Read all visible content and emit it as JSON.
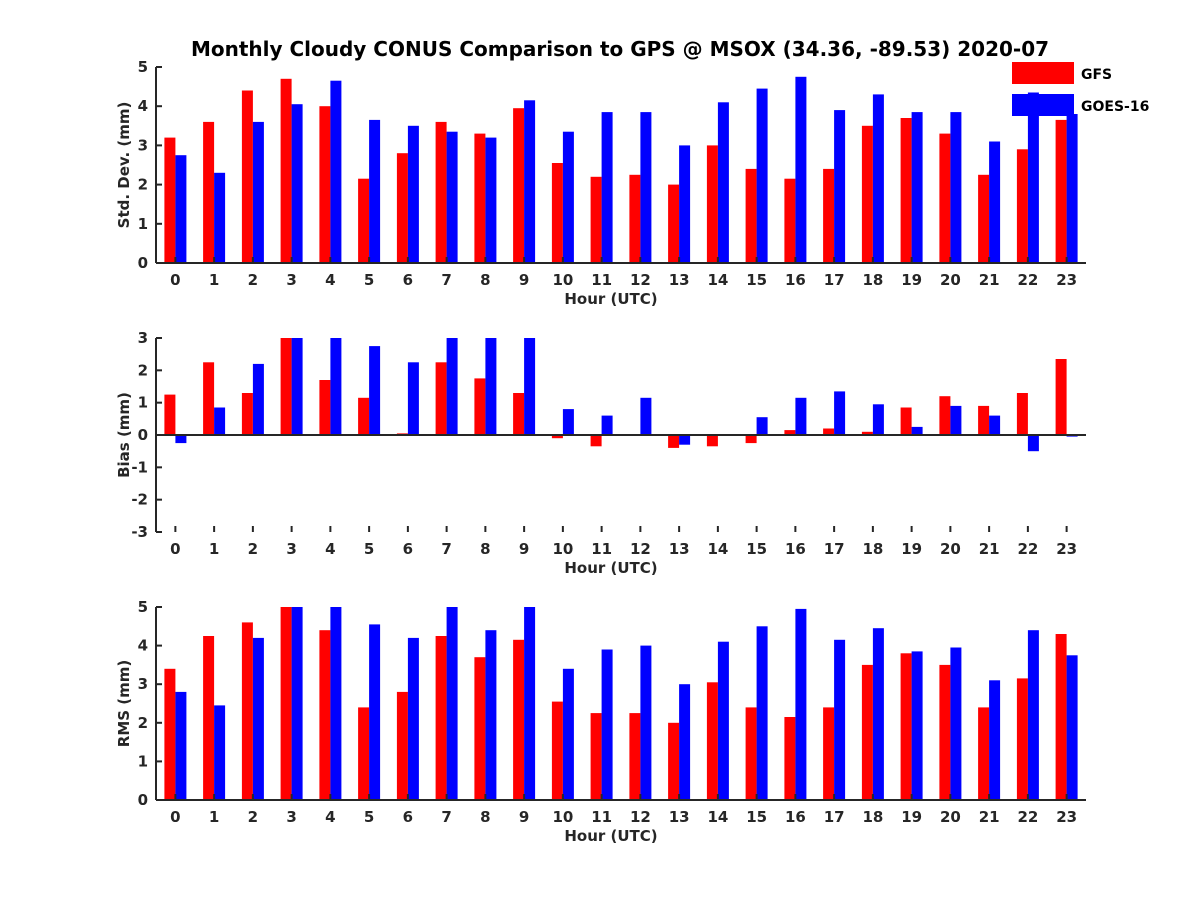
{
  "figure": {
    "title": "Monthly Cloudy CONUS Comparison to GPS @ MSOX (34.36, -89.53) 2020-07"
  },
  "colors": {
    "GFS": "#ff0000",
    "GOES-16": "#0000ff",
    "axis": "#262626"
  },
  "legend": {
    "placement": "top-right",
    "entries": [
      {
        "label": "GFS",
        "color": "#ff0000"
      },
      {
        "label": "GOES-16",
        "color": "#0000ff"
      }
    ]
  },
  "chart_data": [
    {
      "type": "bar",
      "xlabel": "Hour (UTC)",
      "ylabel": "Std. Dev. (mm)",
      "ylim": [
        0,
        5
      ],
      "yticks": [
        0,
        1,
        2,
        3,
        4,
        5
      ],
      "categories": [
        "0",
        "1",
        "2",
        "3",
        "4",
        "5",
        "6",
        "7",
        "8",
        "9",
        "10",
        "11",
        "12",
        "13",
        "14",
        "15",
        "16",
        "17",
        "18",
        "19",
        "20",
        "21",
        "22",
        "23"
      ],
      "series": [
        {
          "name": "GFS",
          "values": [
            3.2,
            3.6,
            4.4,
            4.7,
            4.0,
            2.15,
            2.8,
            3.6,
            3.3,
            3.95,
            2.55,
            2.2,
            2.25,
            2.0,
            3.0,
            2.4,
            2.15,
            2.4,
            3.5,
            3.7,
            3.3,
            2.25,
            2.9,
            3.65
          ]
        },
        {
          "name": "GOES-16",
          "values": [
            2.75,
            2.3,
            3.6,
            4.05,
            4.65,
            3.65,
            3.5,
            3.35,
            3.2,
            4.15,
            3.35,
            3.85,
            3.85,
            3.0,
            4.1,
            4.45,
            4.75,
            3.9,
            4.3,
            3.85,
            3.85,
            3.1,
            4.35,
            3.8
          ]
        }
      ],
      "grid": false
    },
    {
      "type": "bar",
      "xlabel": "Hour (UTC)",
      "ylabel": "Bias (mm)",
      "ylim": [
        -3,
        3
      ],
      "yticks": [
        -3,
        -2,
        -1,
        0,
        1,
        2,
        3
      ],
      "categories": [
        "0",
        "1",
        "2",
        "3",
        "4",
        "5",
        "6",
        "7",
        "8",
        "9",
        "10",
        "11",
        "12",
        "13",
        "14",
        "15",
        "16",
        "17",
        "18",
        "19",
        "20",
        "21",
        "22",
        "23"
      ],
      "series": [
        {
          "name": "GFS",
          "values": [
            1.25,
            2.25,
            1.3,
            3.0,
            1.7,
            1.15,
            0.05,
            2.25,
            1.75,
            1.3,
            -0.1,
            -0.35,
            0.0,
            -0.4,
            -0.35,
            -0.25,
            0.15,
            0.2,
            0.1,
            0.85,
            1.2,
            0.9,
            1.3,
            2.35
          ]
        },
        {
          "name": "GOES-16",
          "values": [
            -0.25,
            0.85,
            2.2,
            3.0,
            3.0,
            2.75,
            2.25,
            3.0,
            3.0,
            3.0,
            0.8,
            0.6,
            1.15,
            -0.3,
            0.0,
            0.55,
            1.15,
            1.35,
            0.95,
            0.25,
            0.9,
            0.6,
            -0.5,
            -0.05
          ]
        }
      ],
      "grid": false
    },
    {
      "type": "bar",
      "xlabel": "Hour (UTC)",
      "ylabel": "RMS (mm)",
      "ylim": [
        0,
        5
      ],
      "yticks": [
        0,
        1,
        2,
        3,
        4,
        5
      ],
      "categories": [
        "0",
        "1",
        "2",
        "3",
        "4",
        "5",
        "6",
        "7",
        "8",
        "9",
        "10",
        "11",
        "12",
        "13",
        "14",
        "15",
        "16",
        "17",
        "18",
        "19",
        "20",
        "21",
        "22",
        "23"
      ],
      "series": [
        {
          "name": "GFS",
          "values": [
            3.4,
            4.25,
            4.6,
            5.0,
            4.4,
            2.4,
            2.8,
            4.25,
            3.7,
            4.15,
            2.55,
            2.25,
            2.25,
            2.0,
            3.05,
            2.4,
            2.15,
            2.4,
            3.5,
            3.8,
            3.5,
            2.4,
            3.15,
            4.3
          ]
        },
        {
          "name": "GOES-16",
          "values": [
            2.8,
            2.45,
            4.2,
            5.0,
            5.0,
            4.55,
            4.2,
            5.0,
            4.4,
            5.0,
            3.4,
            3.9,
            4.0,
            3.0,
            4.1,
            4.5,
            4.95,
            4.15,
            4.45,
            3.85,
            3.95,
            3.1,
            4.4,
            3.75
          ]
        }
      ],
      "grid": false
    }
  ]
}
